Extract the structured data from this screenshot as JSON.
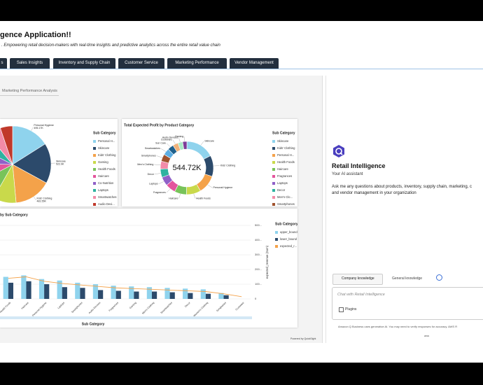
{
  "header": {
    "title": "gence Application!!",
    "subtitle": ". Empowering retail decision-makers with real-time insights and predictive analytics across the entire retail value chain"
  },
  "tabs": [
    "s",
    "Sales Insights",
    "Inventory and Supply Chain",
    "Customer Service",
    "Marketing Performance",
    "Vendor Management"
  ],
  "subtab": "Marketing Performance Analysis",
  "chart_data": [
    {
      "type": "pie",
      "legend_title": "Sub Category",
      "categories": [
        "Personal H...",
        "Skincare",
        "Kids' Clothing",
        "Gaming",
        "Health Foods",
        "Haircare",
        "Co-Nutrition",
        "Laptops",
        "Smartwatches",
        "Audio Devi..."
      ],
      "values": [
        495170,
        522900,
        481550,
        300000,
        280000,
        250000,
        220000,
        200000,
        180000,
        160000
      ],
      "value_labels": [
        "495.17K",
        "522.9K",
        "481.55K",
        null,
        null,
        null,
        null,
        null,
        null,
        null
      ],
      "annotations": [
        "Personal Hygiene",
        "Skincare",
        "Kids' Clothing"
      ],
      "colors": [
        "#8fd3ed",
        "#2c4a6b",
        "#f4a24a",
        "#c9d94b",
        "#78c35a",
        "#e3559d",
        "#9060c8",
        "#2fb2a0",
        "#f28ba8",
        "#c0392b"
      ]
    },
    {
      "type": "donut",
      "title": "Total Expected Profit by Product Category",
      "legend_title": "Sub Category",
      "center_label": "544.72K",
      "categories": [
        "Skincare",
        "Kids' Clothing",
        "Personal H...",
        "Health Foods",
        "Haircare",
        "Fragrances",
        "Laptops",
        "Decor",
        "Men's Clo...",
        "Smartphones",
        "Smartwatches",
        "Sun Care",
        "Cookware",
        "Audio Devices",
        "Gaming"
      ],
      "outer_labels": [
        "Skincare",
        "Kids' Clothing",
        "Personal Hygiene",
        "Health Foods",
        "Haircare",
        "Fragrances",
        "Laptops",
        "Decor",
        "Men's Clothing",
        "Smartphones",
        "Smartwatches",
        "Sun Care",
        "Cookware",
        "Audio Devices",
        "Gaming"
      ],
      "values": [
        95,
        70,
        62,
        48,
        40,
        34,
        30,
        28,
        26,
        24,
        22,
        20,
        18,
        16,
        14
      ],
      "colors": [
        "#8fd3ed",
        "#2c4a6b",
        "#f4a24a",
        "#c9d94b",
        "#78c35a",
        "#e3559d",
        "#9060c8",
        "#2fb2a0",
        "#f28ba8",
        "#a0522d",
        "#5dade2",
        "#1f618d",
        "#f0b27a",
        "#abebc6",
        "#7d3c98"
      ]
    },
    {
      "type": "bar",
      "title": "by Sub Category",
      "x_label": "Sub Category",
      "y_label": "expected_revenue (Sum)",
      "legend_title": "Sub Category",
      "categories": [
        "Health Foods",
        "Haircare",
        "Personal Hygiene",
        "Laptops",
        "Smartphones",
        "Audio Devices",
        "Fragrances",
        "Gaming",
        "Men's Clothing",
        "Smartwatches",
        "Decor",
        "Women's Clothing",
        "Sunglasses",
        "Cookware"
      ],
      "series": [
        {
          "name": "upper_bound",
          "color": "#8fd3ed",
          "mark": "bar",
          "values": [
            150,
            160,
            135,
            125,
            110,
            100,
            90,
            85,
            80,
            75,
            70,
            65,
            40,
            null
          ]
        },
        {
          "name": "lower_bound",
          "color": "#2c4a6b",
          "mark": "bar",
          "values": [
            110,
            120,
            100,
            80,
            75,
            60,
            55,
            50,
            50,
            45,
            40,
            35,
            25,
            null
          ]
        },
        {
          "name": "expected_r...",
          "color": "#f4a24a",
          "mark": "line",
          "values": [
            140,
            150,
            120,
            105,
            95,
            85,
            75,
            70,
            65,
            60,
            55,
            50,
            35,
            15
          ]
        }
      ],
      "ylim": [
        0,
        500
      ],
      "yticks": [
        0,
        {
          "value": 100,
          "label": "100..."
        },
        {
          "value": 200,
          "label": "200..."
        },
        {
          "value": 300,
          "label": "300..."
        },
        {
          "value": 400,
          "label": "400..."
        },
        {
          "value": 500,
          "label": "500..."
        }
      ],
      "grid": true
    }
  ],
  "footer": "Powered by QuickSight",
  "assistant": {
    "title": "Retail Intelligence",
    "subtitle": "Your AI assistant",
    "description_lines": [
      "Ask me any questions about products, inventory, supply chain, marketing, c",
      "and vendor management in your organization"
    ],
    "knowledge_tabs": [
      "Company knowledge",
      "General knowledge"
    ],
    "input_placeholder": "Chat with Retail Intelligence",
    "plugins": "Plugins",
    "disclaimer": "Amazon Q Business uses generative AI. You may need to verify responses for accuracy. AWS R"
  }
}
